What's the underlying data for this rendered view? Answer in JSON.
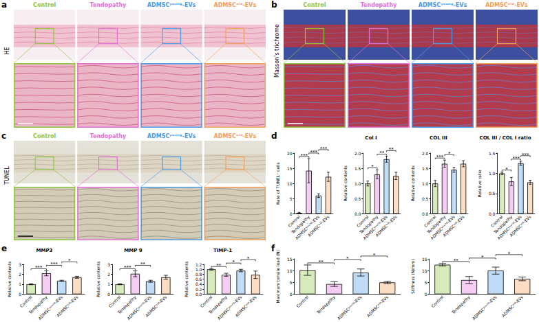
{
  "groups": [
    {
      "name": "Control",
      "color": "#8dc63f"
    },
    {
      "name": "Tendopathy",
      "color": "#e36fd9"
    },
    {
      "name": "ADMSCʸᵒᵘⁿᵍ-EVs",
      "color": "#4a9be8"
    },
    {
      "name": "ADMSCᵒˡᵈ-EVs",
      "color": "#f5a05a"
    }
  ],
  "image_panels": [
    {
      "panel": "a",
      "stain": "HE"
    },
    {
      "panel": "b",
      "stain": "Masson's trichrome"
    },
    {
      "panel": "c",
      "stain": "TUNEL"
    }
  ],
  "chart_data": [
    {
      "panel": "d",
      "type": "bar",
      "ylabel": "Rate of TUNEL⁺ cells",
      "categories": [
        "Control",
        "Tendopathy",
        "ADMSCʸᵒᵘⁿᵍ-EVs",
        "ADMSCᵒˡᵈ-EVs"
      ],
      "values": [
        0.3,
        14.2,
        6.0,
        12.2
      ],
      "errors": [
        0.2,
        4.0,
        0.6,
        1.5
      ],
      "colors": [
        "#8dc63f",
        "#e36fd9",
        "#4a9be8",
        "#f5a05a"
      ],
      "ylim": [
        0,
        20
      ],
      "yticks": [
        0,
        5,
        10,
        15,
        20
      ],
      "grid": false,
      "significance": [
        {
          "between": [
            "Control",
            "Tendopathy"
          ],
          "label": "***"
        },
        {
          "between": [
            "Tendopathy",
            "ADMSCʸᵒᵘⁿᵍ-EVs"
          ],
          "label": "***"
        },
        {
          "between": [
            "ADMSCʸᵒᵘⁿᵍ-EVs",
            "ADMSCᵒˡᵈ-EVs"
          ],
          "label": "***"
        }
      ]
    },
    {
      "panel": "d",
      "type": "bar",
      "title": "Col I",
      "ylabel": "Relative contents",
      "categories": [
        "Control",
        "Tendopathy",
        "ADMSCʸᵒᵘⁿᵍ-EVs",
        "ADMSCᵒˡᵈ-EVs"
      ],
      "values": [
        1.0,
        1.3,
        1.8,
        1.25
      ],
      "errors": [
        0.08,
        0.15,
        0.1,
        0.12
      ],
      "colors": [
        "#8dc63f",
        "#e36fd9",
        "#4a9be8",
        "#f5a05a"
      ],
      "ylim": [
        0,
        2
      ],
      "yticks": [
        {
          "value": 0,
          "label": "0.0"
        },
        0.5,
        {
          "value": 1,
          "label": "1.0"
        },
        1.5,
        {
          "value": 2,
          "label": "2.0"
        }
      ],
      "grid": false,
      "significance": [
        {
          "between": [
            "Control",
            "Tendopathy"
          ],
          "label": "*"
        },
        {
          "between": [
            "Tendopathy",
            "ADMSCʸᵒᵘⁿᵍ-EVs"
          ],
          "label": "**"
        },
        {
          "between": [
            "ADMSCʸᵒᵘⁿᵍ-EVs",
            "ADMSCᵒˡᵈ-EVs"
          ],
          "label": "**"
        }
      ]
    },
    {
      "panel": "d",
      "type": "bar",
      "title": "COL III",
      "ylabel": "Relative contents",
      "categories": [
        "Control",
        "Tendopathy",
        "ADMSCʸᵒᵘⁿᵍ-EVs",
        "ADMSCᵒˡᵈ-EVs"
      ],
      "values": [
        1.0,
        1.65,
        1.45,
        1.65
      ],
      "errors": [
        0.1,
        0.12,
        0.08,
        0.1
      ],
      "colors": [
        "#8dc63f",
        "#e36fd9",
        "#4a9be8",
        "#f5a05a"
      ],
      "ylim": [
        0,
        2
      ],
      "yticks": [
        {
          "value": 0,
          "label": "0.0"
        },
        0.5,
        {
          "value": 1,
          "label": "1.0"
        },
        1.5,
        {
          "value": 2,
          "label": "2.0"
        }
      ],
      "grid": false,
      "significance": [
        {
          "between": [
            "Control",
            "Tendopathy"
          ],
          "label": "***"
        },
        {
          "between": [
            "Tendopathy",
            "ADMSCʸᵒᵘⁿᵍ-EVs"
          ],
          "label": "*"
        }
      ]
    },
    {
      "panel": "d",
      "type": "bar",
      "title": "COL III / COL I ratio",
      "ylabel": "Relative ratio",
      "categories": [
        "Control",
        "Tendopathy",
        "ADMSCʸᵒᵘⁿᵍ-EVs",
        "ADMSCᵒˡᵈ-EVs"
      ],
      "values": [
        1.0,
        0.8,
        1.25,
        0.78
      ],
      "errors": [
        0.03,
        0.1,
        0.05,
        0.05
      ],
      "colors": [
        "#8dc63f",
        "#e36fd9",
        "#4a9be8",
        "#f5a05a"
      ],
      "ylim": [
        0,
        1.5
      ],
      "yticks": [
        {
          "value": 0,
          "label": "0.0"
        },
        0.5,
        {
          "value": 1,
          "label": "1.0"
        },
        1.5
      ],
      "grid": false,
      "significance": [
        {
          "between": [
            "Control",
            "Tendopathy"
          ],
          "label": "*"
        },
        {
          "between": [
            "Tendopathy",
            "ADMSCʸᵒᵘⁿᵍ-EVs"
          ],
          "label": "***"
        },
        {
          "between": [
            "ADMSCʸᵒᵘⁿᵍ-EVs",
            "ADMSCᵒˡᵈ-EVs"
          ],
          "label": "***"
        }
      ]
    },
    {
      "panel": "e",
      "type": "bar",
      "title": "MMP3",
      "ylabel": "Relative contents",
      "categories": [
        "Control",
        "Tendopathy",
        "ADMSCʸᵒᵘⁿᵍ-EVs",
        "ADMSCᵒˡᵈ-EVs"
      ],
      "values": [
        1.0,
        2.1,
        1.35,
        1.7
      ],
      "errors": [
        0.05,
        0.25,
        0.05,
        0.1
      ],
      "colors": [
        "#8dc63f",
        "#e36fd9",
        "#4a9be8",
        "#f5a05a"
      ],
      "ylim": [
        0,
        3
      ],
      "yticks": [
        0,
        1,
        2,
        3
      ],
      "grid": false,
      "significance": [
        {
          "between": [
            "Control",
            "Tendopathy"
          ],
          "label": "***"
        },
        {
          "between": [
            "Tendopathy",
            "ADMSCʸᵒᵘⁿᵍ-EVs"
          ],
          "label": "***"
        },
        {
          "between": [
            "ADMSCʸᵒᵘⁿᵍ-EVs",
            "ADMSCᵒˡᵈ-EVs"
          ],
          "label": "*"
        }
      ]
    },
    {
      "panel": "e",
      "type": "bar",
      "title": "MMP 9",
      "ylabel": "Relative contents",
      "categories": [
        "Control",
        "Tendopathy",
        "ADMSCʸᵒᵘⁿᵍ-EVs",
        "ADMSCᵒˡᵈ-EVs"
      ],
      "values": [
        1.0,
        2.05,
        1.3,
        1.7
      ],
      "errors": [
        0.05,
        0.3,
        0.1,
        0.2
      ],
      "colors": [
        "#8dc63f",
        "#e36fd9",
        "#4a9be8",
        "#f5a05a"
      ],
      "ylim": [
        0,
        3
      ],
      "yticks": [
        0,
        1,
        2,
        3
      ],
      "grid": false,
      "significance": [
        {
          "between": [
            "Control",
            "Tendopathy"
          ],
          "label": "***"
        },
        {
          "between": [
            "Tendopathy",
            "ADMSCʸᵒᵘⁿᵍ-EVs"
          ],
          "label": "**"
        }
      ]
    },
    {
      "panel": "e",
      "type": "bar",
      "title": "TIMP-1",
      "ylabel": "Relative contents",
      "categories": [
        "Control",
        "Tendopathy",
        "ADMSCʸᵒᵘⁿᵍ-EVs",
        "ADMSCᵒˡᵈ-EVs"
      ],
      "values": [
        1.0,
        0.78,
        0.95,
        0.78
      ],
      "errors": [
        0.03,
        0.06,
        0.05,
        0.15
      ],
      "colors": [
        "#8dc63f",
        "#e36fd9",
        "#4a9be8",
        "#f5a05a"
      ],
      "ylim": [
        0,
        1.2
      ],
      "yticks": [
        {
          "value": 0,
          "label": "0.0"
        },
        0.2,
        0.4,
        0.6,
        0.8,
        {
          "value": 1,
          "label": "1.0"
        },
        1.2
      ],
      "grid": false,
      "significance": [
        {
          "between": [
            "Control",
            "Tendopathy"
          ],
          "label": "**"
        },
        {
          "between": [
            "Tendopathy",
            "ADMSCʸᵒᵘⁿᵍ-EVs"
          ],
          "label": "*"
        },
        {
          "between": [
            "ADMSCʸᵒᵘⁿᵍ-EVs",
            "ADMSCᵒˡᵈ-EVs"
          ],
          "label": "*"
        }
      ]
    },
    {
      "panel": "f",
      "type": "bar",
      "ylabel": "Maximum tensile load (N)",
      "categories": [
        "Control",
        "Tendopathy",
        "ADMSCʸᵒᵘⁿᵍ-EVs",
        "ADMSCᵒˡᵈ-EVs"
      ],
      "values": [
        10.2,
        4.3,
        9.2,
        5.0
      ],
      "errors": [
        2.2,
        1.0,
        1.5,
        0.5
      ],
      "colors": [
        "#8dc63f",
        "#e36fd9",
        "#4a9be8",
        "#f5a05a"
      ],
      "ylim": [
        0,
        15
      ],
      "yticks": [
        0,
        5,
        10,
        15
      ],
      "grid": false,
      "significance": [
        {
          "between": [
            "Control",
            "Tendopathy"
          ],
          "label": "**"
        },
        {
          "between": [
            "Tendopathy",
            "ADMSCʸᵒᵘⁿᵍ-EVs"
          ],
          "label": "*"
        },
        {
          "between": [
            "ADMSCʸᵒᵘⁿᵍ-EVs",
            "ADMSCᵒˡᵈ-EVs"
          ],
          "label": "*"
        }
      ]
    },
    {
      "panel": "f",
      "type": "bar",
      "ylabel": "Stiffness (N/mm)",
      "categories": [
        "Control",
        "Tendopathy",
        "ADMSCʸᵒᵘⁿᵍ-EVs",
        "ADMSCᵒˡᵈ-EVs"
      ],
      "values": [
        12.5,
        6.0,
        10.0,
        6.5
      ],
      "errors": [
        0.5,
        1.5,
        1.5,
        0.8
      ],
      "colors": [
        "#8dc63f",
        "#e36fd9",
        "#4a9be8",
        "#f5a05a"
      ],
      "ylim": [
        0,
        15
      ],
      "yticks": [
        0,
        5,
        10,
        15
      ],
      "grid": false,
      "significance": [
        {
          "between": [
            "Control",
            "Tendopathy"
          ],
          "label": "**"
        },
        {
          "between": [
            "Tendopathy",
            "ADMSCʸᵒᵘⁿᵍ-EVs"
          ],
          "label": "*"
        },
        {
          "between": [
            "ADMSCʸᵒᵘⁿᵍ-EVs",
            "ADMSCᵒˡᵈ-EVs"
          ],
          "label": "*"
        }
      ]
    }
  ]
}
